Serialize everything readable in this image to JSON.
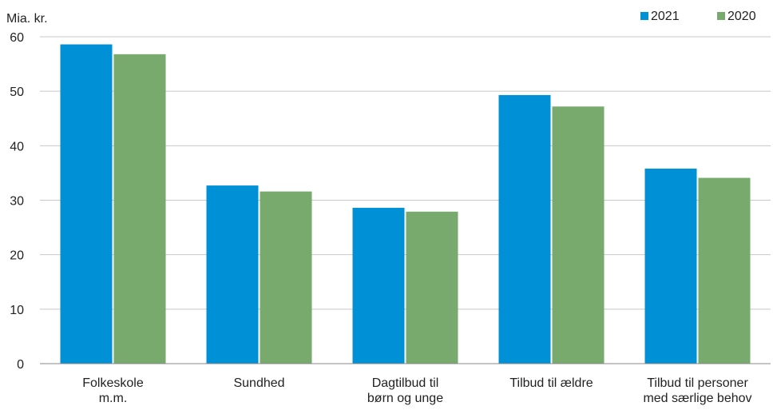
{
  "chart_data": {
    "type": "bar",
    "ylabel": "Mia. kr.",
    "ylim": [
      0,
      60
    ],
    "yticks": [
      0,
      10,
      20,
      30,
      40,
      50,
      60
    ],
    "grid": true,
    "legend_position": "top-right",
    "categories": [
      [
        "Folkeskole",
        "m.m."
      ],
      [
        "Sundhed"
      ],
      [
        "Dagtilbud til",
        "børn og unge"
      ],
      [
        "Tilbud til ældre"
      ],
      [
        "Tilbud til personer",
        "med særlige behov"
      ]
    ],
    "series": [
      {
        "name": "2021",
        "color": "#0090d6",
        "values": [
          58.6,
          32.7,
          28.6,
          49.3,
          35.8
        ]
      },
      {
        "name": "2020",
        "color": "#79aa6d",
        "values": [
          56.8,
          31.6,
          27.9,
          47.2,
          34.1
        ]
      }
    ]
  }
}
